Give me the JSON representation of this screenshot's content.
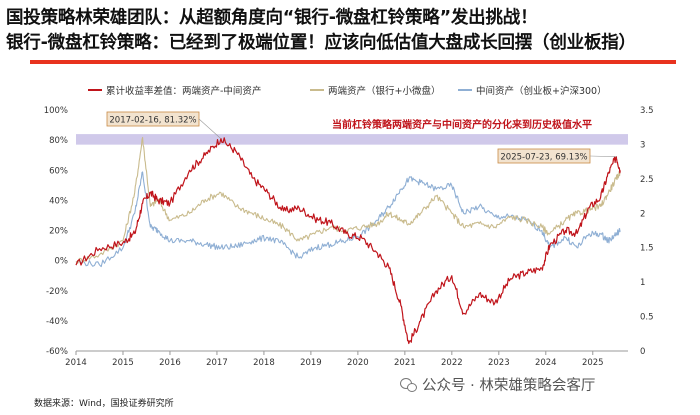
{
  "header": {
    "title_line1": "国投策略林荣雄团队：从超额角度向“银行-微盘杠铃策略”发出挑战！",
    "title_line2": "银行-微盘杠铃策略：已经到了极端位置！应该向低估值大盘成长回摆（创业板指）"
  },
  "footer": {
    "source": "数据来源：Wind，国投证券研究所",
    "watermark": "公众号 · 林荣雄策略会客厅"
  },
  "colors": {
    "accent_red": "#e8321e",
    "spread": "#c0141b",
    "high_end": "#c9bb8d",
    "middle": "#8fafd4",
    "band": "#c8bfe6"
  },
  "chart_data": {
    "type": "line",
    "x": [
      "2014-01",
      "2014-07",
      "2015-01",
      "2015-04",
      "2015-06",
      "2015-08",
      "2015-10",
      "2016-01",
      "2016-06",
      "2016-10",
      "2017-02",
      "2017-06",
      "2017-10",
      "2018-02",
      "2018-06",
      "2018-10",
      "2019-02",
      "2019-06",
      "2019-10",
      "2020-02",
      "2020-06",
      "2020-09",
      "2020-12",
      "2021-02",
      "2021-05",
      "2021-09",
      "2022-01",
      "2022-04",
      "2022-08",
      "2022-12",
      "2023-04",
      "2023-08",
      "2023-12",
      "2024-02",
      "2024-06",
      "2024-09",
      "2024-12",
      "2025-03",
      "2025-05",
      "2025-07",
      "2025-08"
    ],
    "series": [
      {
        "name": "累计收益率差值：两端资产-中间资产",
        "axis": "left",
        "values": [
          -3,
          8,
          12,
          18,
          38,
          45,
          40,
          38,
          60,
          70,
          81,
          72,
          55,
          45,
          33,
          35,
          28,
          25,
          18,
          15,
          5,
          -5,
          -30,
          -55,
          -40,
          -20,
          -10,
          -35,
          -22,
          -28,
          -12,
          -8,
          -5,
          10,
          20,
          18,
          35,
          42,
          58,
          69,
          60
        ]
      },
      {
        "name": "两端资产（银行+小微盘）",
        "axis": "right",
        "values": [
          1.3,
          1.4,
          1.6,
          2.3,
          3.1,
          2.1,
          2.2,
          1.9,
          2.0,
          2.2,
          2.3,
          2.1,
          2.0,
          1.9,
          1.8,
          1.6,
          1.7,
          1.8,
          1.75,
          1.8,
          1.85,
          2.0,
          1.9,
          1.85,
          2.0,
          2.25,
          2.0,
          1.8,
          1.85,
          1.8,
          1.95,
          1.9,
          1.8,
          1.7,
          1.9,
          2.0,
          2.05,
          2.1,
          2.3,
          2.5,
          2.6
        ]
      },
      {
        "name": "中间资产（创业板+沪深300）",
        "axis": "right",
        "values": [
          1.3,
          1.25,
          1.5,
          2.0,
          2.6,
          1.8,
          1.75,
          1.6,
          1.6,
          1.55,
          1.5,
          1.52,
          1.6,
          1.65,
          1.55,
          1.35,
          1.5,
          1.55,
          1.6,
          1.7,
          1.9,
          2.1,
          2.35,
          2.5,
          2.45,
          2.35,
          2.4,
          2.0,
          2.1,
          1.95,
          1.95,
          1.9,
          1.75,
          1.5,
          1.65,
          1.5,
          1.7,
          1.7,
          1.6,
          1.7,
          1.75
        ]
      }
    ],
    "x_ticks": [
      "2014",
      "2015",
      "2016",
      "2017",
      "2018",
      "2019",
      "2020",
      "2021",
      "2022",
      "2023",
      "2024",
      "2025"
    ],
    "y_left_ticks": [
      "100%",
      "80%",
      "60%",
      "40%",
      "20%",
      "0%",
      "-20%",
      "-40%",
      "-60%"
    ],
    "y_right_ticks": [
      "3.5",
      "3",
      "2.5",
      "2",
      "1.5",
      "1",
      "0.5",
      "0"
    ],
    "ylim_left": [
      -60,
      100
    ],
    "ylim_right": [
      0,
      3.5
    ],
    "band_range": [
      77,
      84
    ],
    "annotations": {
      "peak_2017": "2017-02-16, 81.32%",
      "peak_2025": "2025-07-23, 69.13%",
      "note": "当前杠铃策略两端资产与中间资产的分化来到历史极值水平"
    },
    "grid": false,
    "legend": "top"
  }
}
